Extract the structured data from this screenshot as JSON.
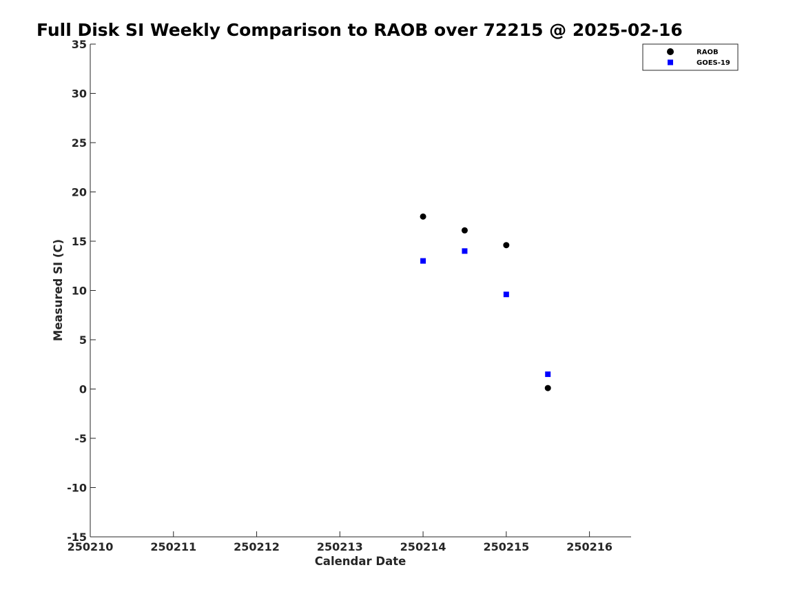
{
  "chart_data": {
    "type": "scatter",
    "title": "Full Disk SI Weekly Comparison to RAOB over 72215 @ 2025-02-16",
    "xlabel": "Calendar Date",
    "ylabel": "Measured SI (C)",
    "xlim": [
      250210,
      250216.5
    ],
    "ylim": [
      -15,
      35
    ],
    "xticks": [
      250210,
      250211,
      250212,
      250213,
      250214,
      250215,
      250216
    ],
    "xtick_labels": [
      "250210",
      "250211",
      "250212",
      "250213",
      "250214",
      "250215",
      "250216"
    ],
    "yticks": [
      -15,
      -10,
      -5,
      0,
      5,
      10,
      15,
      20,
      25,
      30,
      35
    ],
    "ytick_labels": [
      "-15",
      "-10",
      "-5",
      "0",
      "5",
      "10",
      "15",
      "20",
      "25",
      "30",
      "35"
    ],
    "grid": false,
    "legend_position": "top-right",
    "series": [
      {
        "name": "RAOB",
        "marker": "circle",
        "color": "#000000",
        "x": [
          250214,
          250214.5,
          250215,
          250215.5
        ],
        "y": [
          17.5,
          16.1,
          14.6,
          0.1
        ]
      },
      {
        "name": "GOES-19",
        "marker": "square",
        "color": "#0000ff",
        "x": [
          250214,
          250214.5,
          250215,
          250215.5
        ],
        "y": [
          13.0,
          14.0,
          9.6,
          1.5
        ]
      }
    ]
  }
}
